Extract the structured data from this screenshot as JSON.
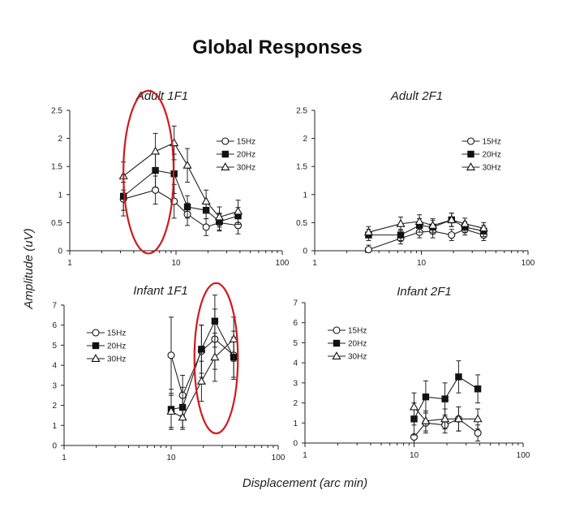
{
  "figure": {
    "title": "Global Responses",
    "ylabel": "Amplitude (uV)",
    "xlabel": "Displacement (arc min)",
    "highlight_color": "#d0191e"
  },
  "chart_data": [
    {
      "type": "line",
      "title": "Adult 1F1",
      "x_scale": "log",
      "xlim": [
        1,
        100
      ],
      "ylim": [
        0,
        2.5
      ],
      "x_ticks": [
        1,
        10,
        100
      ],
      "y_ticks": [
        "0",
        "0.5",
        "1",
        "1.5",
        "2",
        "2.5"
      ],
      "legend_position": "top-right",
      "highlight": {
        "shape": "ellipse",
        "x_range": [
          3.2,
          9.5
        ],
        "y_range": [
          -0.05,
          2.85
        ]
      },
      "series": [
        {
          "name": "15Hz",
          "marker": "open-circle",
          "x": [
            3.2,
            6.4,
            9.6,
            12.8,
            19.2,
            25.6,
            38.4
          ],
          "y": [
            0.92,
            1.08,
            0.88,
            0.65,
            0.42,
            0.5,
            0.45
          ],
          "err": [
            0.3,
            0.25,
            0.3,
            0.2,
            0.15,
            0.15,
            0.15
          ]
        },
        {
          "name": "20Hz",
          "marker": "filled-square",
          "x": [
            3.2,
            6.4,
            9.6,
            12.8,
            19.2,
            25.6,
            38.4
          ],
          "y": [
            0.97,
            1.43,
            1.37,
            0.78,
            0.72,
            0.52,
            0.62
          ],
          "err": [
            0.25,
            0.3,
            0.35,
            0.2,
            0.15,
            0.15,
            0.15
          ]
        },
        {
          "name": "30Hz",
          "marker": "open-triangle",
          "x": [
            3.2,
            6.4,
            9.6,
            12.8,
            19.2,
            25.6,
            38.4
          ],
          "y": [
            1.33,
            1.77,
            1.92,
            1.52,
            0.88,
            0.6,
            0.7
          ],
          "err": [
            0.25,
            0.32,
            0.3,
            0.3,
            0.2,
            0.18,
            0.2
          ]
        }
      ]
    },
    {
      "type": "line",
      "title": "Adult 2F1",
      "x_scale": "log",
      "xlim": [
        1,
        100
      ],
      "ylim": [
        0,
        2.5
      ],
      "x_ticks": [
        1,
        10,
        100
      ],
      "y_ticks": [
        "0",
        "0.5",
        "1",
        "1.5",
        "2",
        "2.5"
      ],
      "legend_position": "top-right",
      "series": [
        {
          "name": "15Hz",
          "marker": "open-circle",
          "x": [
            3.2,
            6.4,
            9.6,
            12.8,
            19.2,
            25.6,
            38.4
          ],
          "y": [
            0.02,
            0.22,
            0.33,
            0.35,
            0.28,
            0.38,
            0.28
          ],
          "err": [
            0.08,
            0.1,
            0.1,
            0.12,
            0.1,
            0.1,
            0.1
          ]
        },
        {
          "name": "20Hz",
          "marker": "filled-square",
          "x": [
            3.2,
            6.4,
            9.6,
            12.8,
            19.2,
            25.6,
            38.4
          ],
          "y": [
            0.28,
            0.28,
            0.45,
            0.42,
            0.55,
            0.42,
            0.35
          ],
          "err": [
            0.1,
            0.1,
            0.12,
            0.12,
            0.12,
            0.1,
            0.1
          ]
        },
        {
          "name": "30Hz",
          "marker": "open-triangle",
          "x": [
            3.2,
            6.4,
            9.6,
            12.8,
            19.2,
            25.6,
            38.4
          ],
          "y": [
            0.33,
            0.48,
            0.52,
            0.45,
            0.55,
            0.48,
            0.4
          ],
          "err": [
            0.1,
            0.12,
            0.12,
            0.12,
            0.12,
            0.1,
            0.1
          ]
        }
      ]
    },
    {
      "type": "line",
      "title": "Infant 1F1",
      "x_scale": "log",
      "xlim": [
        1,
        100
      ],
      "ylim": [
        0,
        7
      ],
      "x_ticks": [
        1,
        10,
        100
      ],
      "y_ticks": [
        "0",
        "1",
        "2",
        "3",
        "4",
        "5",
        "6",
        "7"
      ],
      "legend_position": "top-left",
      "highlight": {
        "shape": "ellipse",
        "x_range": [
          16.5,
          42
        ],
        "y_range": [
          0.6,
          8.1
        ]
      },
      "series": [
        {
          "name": "15Hz",
          "marker": "open-circle",
          "x": [
            10,
            12.8,
            19.2,
            25.6,
            38.4
          ],
          "y": [
            4.5,
            2.5,
            4.7,
            5.3,
            4.5
          ],
          "err": [
            1.9,
            1.0,
            1.3,
            1.5,
            1.2
          ]
        },
        {
          "name": "20Hz",
          "marker": "filled-square",
          "x": [
            10,
            12.8,
            19.2,
            25.6,
            38.4
          ],
          "y": [
            1.8,
            1.9,
            4.8,
            6.2,
            4.4
          ],
          "err": [
            1.0,
            1.0,
            1.2,
            1.3,
            1.0
          ]
        },
        {
          "name": "30Hz",
          "marker": "open-triangle",
          "x": [
            10,
            12.8,
            19.2,
            25.6,
            38.4
          ],
          "y": [
            1.7,
            1.4,
            3.2,
            4.4,
            5.3
          ],
          "err": [
            0.8,
            0.6,
            1.0,
            1.2,
            1.1
          ]
        }
      ]
    },
    {
      "type": "line",
      "title": "Infant 2F1",
      "x_scale": "log",
      "xlim": [
        1,
        100
      ],
      "ylim": [
        0,
        7
      ],
      "x_ticks": [
        1,
        10,
        100
      ],
      "y_ticks": [
        "0",
        "1",
        "2",
        "3",
        "4",
        "5",
        "6",
        "7"
      ],
      "legend_position": "top-left",
      "series": [
        {
          "name": "15Hz",
          "marker": "open-circle",
          "x": [
            10,
            12.8,
            19.2,
            25.6,
            38.4
          ],
          "y": [
            0.3,
            1.0,
            0.9,
            1.2,
            0.5
          ],
          "err": [
            0.6,
            0.5,
            0.4,
            0.6,
            0.4
          ]
        },
        {
          "name": "20Hz",
          "marker": "filled-square",
          "x": [
            10,
            12.8,
            19.2,
            25.6,
            38.4
          ],
          "y": [
            1.2,
            2.3,
            2.2,
            3.3,
            2.7
          ],
          "err": [
            0.8,
            0.8,
            0.8,
            0.8,
            0.7
          ]
        },
        {
          "name": "30Hz",
          "marker": "open-triangle",
          "x": [
            10,
            12.8,
            19.2,
            25.6,
            38.4
          ],
          "y": [
            1.8,
            1.1,
            1.2,
            1.2,
            1.2
          ],
          "err": [
            0.7,
            0.5,
            0.5,
            0.6,
            0.5
          ]
        }
      ]
    }
  ]
}
